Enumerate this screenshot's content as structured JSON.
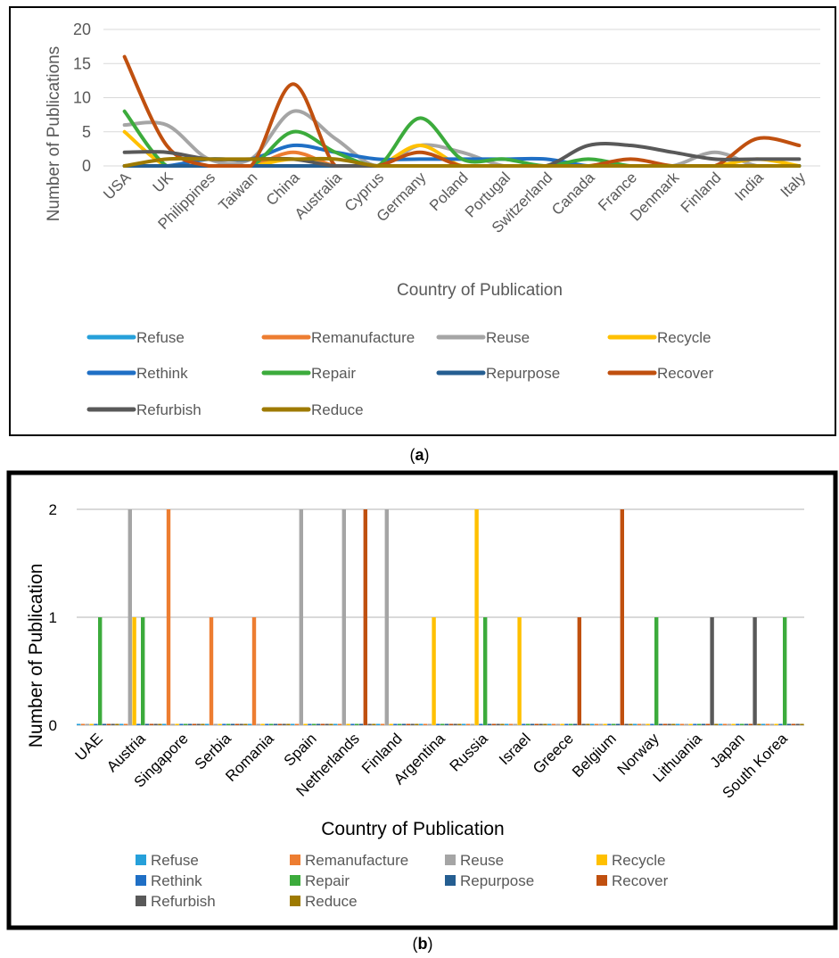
{
  "chart_data": [
    {
      "id": "a",
      "type": "line",
      "caption_letter": "a",
      "caption_open": "(",
      "caption_close": ")",
      "title": "",
      "xlabel": "Country of Publication",
      "ylabel": "Number of Publications",
      "ylim": [
        0,
        20
      ],
      "yticks": [
        0,
        5,
        10,
        15,
        20
      ],
      "grid": true,
      "smooth": true,
      "legend_position": "bottom",
      "categories": [
        "USA",
        "UK",
        "Philippines",
        "Taiwan",
        "China",
        "Australia",
        "Cyprus",
        "Germany",
        "Poland",
        "Portugal",
        "Switzerland",
        "Canada",
        "France",
        "Denmark",
        "Finland",
        "India",
        "Italy"
      ],
      "series": [
        {
          "name": "Refuse",
          "color": "#26A0DA",
          "values": [
            0,
            0,
            0,
            0,
            0,
            0,
            0,
            0,
            0,
            0,
            0,
            0,
            0,
            0,
            0,
            0,
            0
          ]
        },
        {
          "name": "Remanufacture",
          "color": "#ED7D31",
          "values": [
            0,
            0,
            0,
            0,
            2,
            0,
            0,
            0,
            0,
            0,
            0,
            0,
            0,
            0,
            0,
            0,
            0
          ]
        },
        {
          "name": "Reuse",
          "color": "#A5A5A5",
          "values": [
            6,
            6,
            1,
            1,
            8,
            4,
            0,
            3,
            2,
            0,
            0,
            0,
            0,
            0,
            2,
            0,
            0
          ]
        },
        {
          "name": "Recycle",
          "color": "#FFC000",
          "values": [
            5,
            0,
            0,
            0,
            1,
            0,
            0,
            3,
            0,
            0,
            0,
            0,
            0,
            0,
            0,
            1,
            0
          ]
        },
        {
          "name": "Rethink",
          "color": "#1F6FC5",
          "values": [
            0,
            0,
            1,
            1,
            3,
            2,
            1,
            1,
            1,
            1,
            1,
            0,
            0,
            0,
            0,
            0,
            0
          ]
        },
        {
          "name": "Repair",
          "color": "#3CAB3C",
          "values": [
            8,
            0,
            0,
            0,
            5,
            2,
            0,
            7,
            1,
            1,
            0,
            1,
            0,
            0,
            0,
            0,
            0
          ]
        },
        {
          "name": "Repurpose",
          "color": "#255E91",
          "values": [
            0,
            0,
            0,
            0,
            0,
            0,
            0,
            0,
            0,
            0,
            0,
            0,
            0,
            0,
            0,
            0,
            0
          ]
        },
        {
          "name": "Recover",
          "color": "#C0500F",
          "values": [
            16,
            3,
            0,
            0,
            12,
            0,
            0,
            2,
            0,
            0,
            0,
            0,
            1,
            0,
            0,
            4,
            3
          ]
        },
        {
          "name": "Refurbish",
          "color": "#595959",
          "values": [
            2,
            2,
            1,
            1,
            1,
            0,
            0,
            0,
            0,
            0,
            0,
            3,
            3,
            2,
            1,
            1,
            1
          ]
        },
        {
          "name": "Reduce",
          "color": "#9E7A00",
          "values": [
            0,
            1,
            1,
            1,
            1,
            1,
            0,
            0,
            0,
            0,
            0,
            0,
            0,
            0,
            0,
            0,
            0
          ]
        }
      ]
    },
    {
      "id": "b",
      "type": "bar",
      "caption_letter": "b",
      "caption_open": "(",
      "caption_close": ")",
      "title": "",
      "xlabel": "Country of Publication",
      "ylabel": "Number of Publication",
      "ylim": [
        0,
        2
      ],
      "yticks": [
        0,
        1,
        2
      ],
      "grid": true,
      "legend_position": "bottom",
      "categories": [
        "UAE",
        "Austria",
        "Singapore",
        "Serbia",
        "Romania",
        "Spain",
        "Netherlands",
        "Finland",
        "Argentina",
        "Russia",
        "Israel",
        "Greece",
        "Belgium",
        "Norway",
        "Lithuania",
        "Japan",
        "South Korea"
      ],
      "series": [
        {
          "name": "Refuse",
          "color": "#26A0DA",
          "values": [
            0,
            0,
            0,
            0,
            0,
            0,
            0,
            0,
            0,
            0,
            0,
            0,
            0,
            0,
            0,
            0,
            0
          ]
        },
        {
          "name": "Remanufacture",
          "color": "#ED7D31",
          "values": [
            0,
            0,
            2,
            1,
            1,
            0,
            0,
            0,
            0,
            0,
            0,
            0,
            0,
            0,
            0,
            0,
            0
          ]
        },
        {
          "name": "Reuse",
          "color": "#A5A5A5",
          "values": [
            0,
            2,
            0,
            0,
            0,
            2,
            2,
            2,
            0,
            0,
            0,
            0,
            0,
            0,
            0,
            0,
            0
          ]
        },
        {
          "name": "Recycle",
          "color": "#FFC000",
          "values": [
            0,
            1,
            0,
            0,
            0,
            0,
            0,
            0,
            1,
            2,
            1,
            0,
            0,
            0,
            0,
            0,
            0
          ]
        },
        {
          "name": "Rethink",
          "color": "#1F6FC5",
          "values": [
            0,
            0,
            0,
            0,
            0,
            0,
            0,
            0,
            0,
            0,
            0,
            0,
            0,
            0,
            0,
            0,
            0
          ]
        },
        {
          "name": "Repair",
          "color": "#3CAB3C",
          "values": [
            1,
            1,
            0,
            0,
            0,
            0,
            0,
            0,
            0,
            1,
            0,
            0,
            0,
            1,
            0,
            0,
            1
          ]
        },
        {
          "name": "Repurpose",
          "color": "#255E91",
          "values": [
            0,
            0,
            0,
            0,
            0,
            0,
            0,
            0,
            0,
            0,
            0,
            0,
            0,
            0,
            0,
            0,
            0
          ]
        },
        {
          "name": "Recover",
          "color": "#C0500F",
          "values": [
            0,
            0,
            0,
            0,
            0,
            0,
            2,
            0,
            0,
            0,
            0,
            1,
            2,
            0,
            0,
            0,
            0
          ]
        },
        {
          "name": "Refurbish",
          "color": "#595959",
          "values": [
            0,
            0,
            0,
            0,
            0,
            0,
            0,
            0,
            0,
            0,
            0,
            0,
            0,
            0,
            1,
            1,
            0
          ]
        },
        {
          "name": "Reduce",
          "color": "#9E7A00",
          "values": [
            0,
            0,
            0,
            0,
            0,
            0,
            0,
            0,
            0,
            0,
            0,
            0,
            0,
            0,
            0,
            0,
            0
          ]
        }
      ]
    }
  ]
}
